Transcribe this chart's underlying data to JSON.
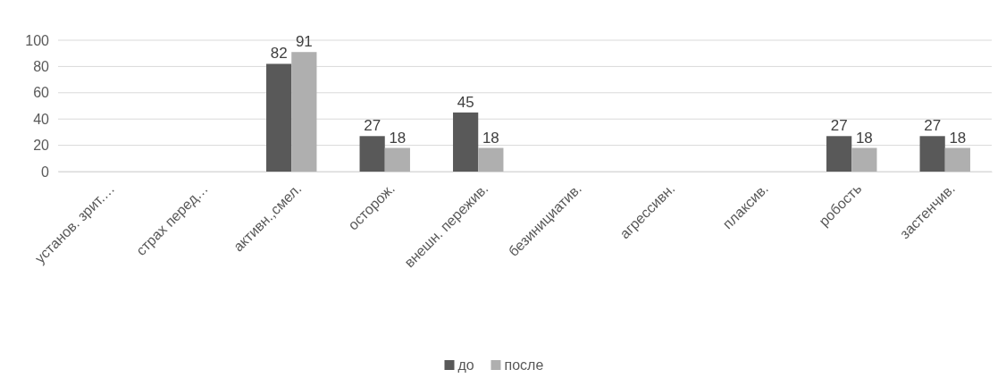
{
  "chart_data": {
    "type": "bar",
    "categories": [
      "установ. зрит.…",
      "страх перед…",
      "активн.,смел.",
      "осторож.",
      "внешн. пережив.",
      "безинициатив.",
      "агрессивн.",
      "плаксив.",
      "робость",
      "застенчив."
    ],
    "series": [
      {
        "name": "до",
        "color": "#595959",
        "values": [
          null,
          null,
          82,
          27,
          45,
          null,
          null,
          null,
          27,
          27
        ]
      },
      {
        "name": "после",
        "color": "#afafaf",
        "values": [
          null,
          null,
          91,
          18,
          18,
          null,
          null,
          null,
          18,
          18
        ]
      }
    ],
    "ylim": [
      0,
      100
    ],
    "yticks": [
      0,
      20,
      40,
      60,
      80,
      100
    ],
    "grid": "y",
    "legend": "bottom",
    "data_labels": true
  }
}
